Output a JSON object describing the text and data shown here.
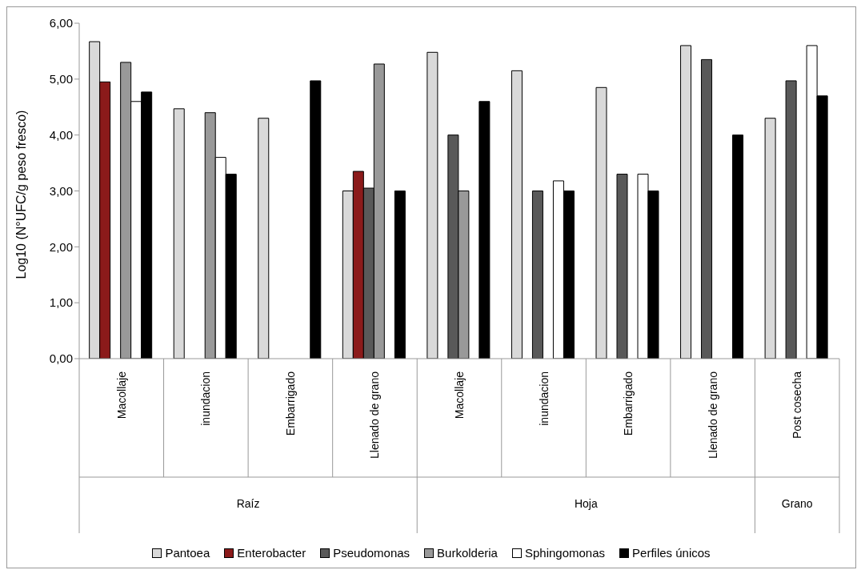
{
  "chart_data": {
    "type": "bar",
    "ylabel": "Log10 (N°UFC/g peso fresco)",
    "categories": [
      "Macollaje",
      "inundacion",
      "Embarrigado",
      "Llenado de grano",
      "Macollaje",
      "inundacion",
      "Embarrigado",
      "Llenado de grano",
      "Post cosecha"
    ],
    "series": [
      {
        "name": "Pantoea",
        "color": "#d9d9d9",
        "values": [
          5.67,
          4.47,
          4.3,
          3.0,
          5.48,
          5.15,
          4.85,
          5.6,
          4.3
        ]
      },
      {
        "name": "Enterobacter",
        "color": "#8b1a1a",
        "values": [
          4.95,
          null,
          null,
          3.35,
          null,
          null,
          null,
          null,
          null
        ]
      },
      {
        "name": "Pseudomonas",
        "color": "#595959",
        "values": [
          null,
          null,
          null,
          3.05,
          4.0,
          3.0,
          3.3,
          5.35,
          4.97
        ]
      },
      {
        "name": "Burkolderia",
        "color": "#999999",
        "values": [
          5.3,
          4.4,
          null,
          5.27,
          3.0,
          null,
          null,
          null,
          null
        ]
      },
      {
        "name": "Sphingomonas",
        "color": "#ffffff",
        "values": [
          4.6,
          3.6,
          null,
          null,
          null,
          3.18,
          3.3,
          null,
          5.6
        ]
      },
      {
        "name": "Perfiles únicos",
        "color": "#000000",
        "values": [
          4.77,
          3.3,
          4.97,
          3.0,
          4.6,
          3.0,
          3.0,
          4.0,
          4.7
        ]
      }
    ],
    "ylim": [
      0,
      6
    ],
    "yticks": [
      {
        "value": 0,
        "label": "0,00"
      },
      {
        "value": 1,
        "label": "1,00"
      },
      {
        "value": 2,
        "label": "2,00"
      },
      {
        "value": 3,
        "label": "3,00"
      },
      {
        "value": 4,
        "label": "4,00"
      },
      {
        "value": 5,
        "label": "5,00"
      },
      {
        "value": 6,
        "label": "6,00"
      }
    ],
    "annotations": [
      "Raíz",
      "Hoja",
      "Grano"
    ],
    "grid": false,
    "legend": "bottom"
  }
}
